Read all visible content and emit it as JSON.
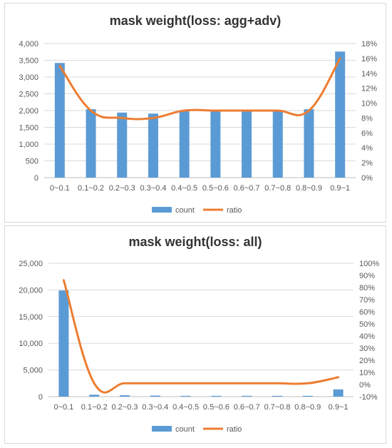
{
  "colors": {
    "bar": "#5b9bd5",
    "line": "#ed7d31",
    "grid": "#d9d9d9",
    "axis_text": "#595959"
  },
  "chart_data": [
    {
      "type": "bar",
      "title": "mask weight(loss: agg+adv)",
      "categories": [
        "0~0.1",
        "0.1~0.2",
        "0.2~0.3",
        "0.3~0.4",
        "0.4~0.5",
        "0.5~0.6",
        "0.6~0.7",
        "0.7~0.8",
        "0.8~0.9",
        "0.9~1"
      ],
      "series": [
        {
          "name": "count",
          "type": "bar",
          "axis": "left",
          "values": [
            3420,
            2040,
            1940,
            1910,
            2000,
            2000,
            2000,
            2000,
            2040,
            3760
          ]
        },
        {
          "name": "ratio",
          "type": "line",
          "smooth": true,
          "axis": "right",
          "values": [
            0.15,
            0.09,
            0.08,
            0.08,
            0.09,
            0.09,
            0.09,
            0.09,
            0.09,
            0.16
          ]
        }
      ],
      "y_left": {
        "min": 0,
        "max": 4000,
        "ticks": [
          "0",
          "500",
          "1,000",
          "1,500",
          "2,000",
          "2,500",
          "3,000",
          "3,500",
          "4,000"
        ]
      },
      "y_right": {
        "min": 0,
        "max": 0.18,
        "ticks": [
          "0%",
          "2%",
          "4%",
          "6%",
          "8%",
          "10%",
          "12%",
          "14%",
          "16%",
          "18%"
        ]
      },
      "grid": true,
      "legend": "bottom"
    },
    {
      "type": "bar",
      "title": "mask weight(loss: all)",
      "categories": [
        "0~0.1",
        "0.1~0.2",
        "0.2~0.3",
        "0.3~0.4",
        "0.4~0.5",
        "0.5~0.6",
        "0.6~0.7",
        "0.7~0.8",
        "0.8~0.9",
        "0.9~1"
      ],
      "series": [
        {
          "name": "count",
          "type": "bar",
          "axis": "left",
          "values": [
            19900,
            350,
            250,
            200,
            150,
            150,
            150,
            150,
            150,
            1350
          ]
        },
        {
          "name": "ratio",
          "type": "line",
          "smooth": true,
          "axis": "right",
          "values": [
            0.86,
            0.01,
            0.01,
            0.01,
            0.01,
            0.01,
            0.01,
            0.01,
            0.01,
            0.06
          ]
        }
      ],
      "y_left": {
        "min": 0,
        "max": 25000,
        "ticks": [
          "0",
          "5,000",
          "10,000",
          "15,000",
          "20,000",
          "25,000"
        ]
      },
      "y_right": {
        "min": -0.1,
        "max": 1.0,
        "ticks": [
          "-10%",
          "0%",
          "10%",
          "20%",
          "30%",
          "40%",
          "50%",
          "60%",
          "70%",
          "80%",
          "90%",
          "100%"
        ]
      },
      "grid": true,
      "legend": "bottom"
    }
  ]
}
